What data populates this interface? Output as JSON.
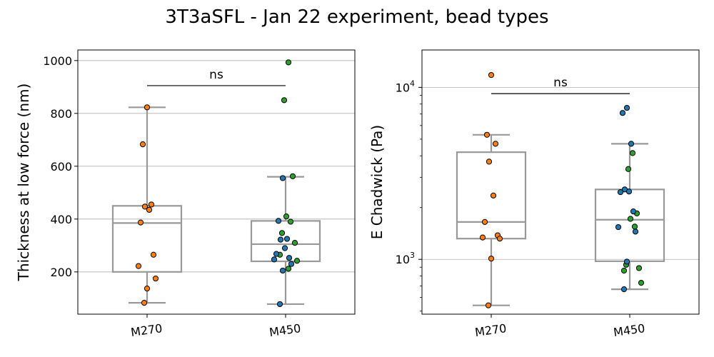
{
  "title": "3T3aSFL - Jan 22 experiment, bead types",
  "colors": {
    "box": "#999999",
    "grid": "#b0b0b0",
    "point_edge": "#000000",
    "orange": "#ff7f0e",
    "green": "#2ca02c",
    "blue": "#1f77b4"
  },
  "chart_data": [
    {
      "type": "box",
      "ylabel": "Thickness at low force (nm)",
      "yscale": "linear",
      "ylim": [
        40,
        1040
      ],
      "yticks": [
        200,
        400,
        600,
        800,
        1000
      ],
      "grid": "y",
      "categories": [
        "M270",
        "M450"
      ],
      "boxes": [
        {
          "category": "M270",
          "whisker_low": 83,
          "q1": 200,
          "median": 385,
          "q3": 450,
          "whisker_high": 823
        },
        {
          "category": "M450",
          "whisker_low": 78,
          "q1": 240,
          "median": 305,
          "q3": 393,
          "whisker_high": 560
        }
      ],
      "points": [
        {
          "category": "M270",
          "color": "orange",
          "values": [
            823,
            683,
            455,
            447,
            435,
            387,
            265,
            222,
            175,
            137,
            83
          ]
        },
        {
          "category": "M450",
          "color": "green",
          "values": [
            993,
            850,
            562,
            410,
            390,
            347,
            310,
            265,
            242,
            212
          ]
        },
        {
          "category": "M450",
          "color": "blue",
          "values": [
            555,
            393,
            325,
            322,
            290,
            268,
            253,
            247,
            230,
            205,
            78
          ]
        }
      ],
      "annotation": {
        "text": "ns",
        "y": 905
      }
    },
    {
      "type": "box",
      "ylabel": "E Chadwick (Pa)",
      "yscale": "log",
      "ylim": [
        480,
        16500
      ],
      "yticks": [
        1000,
        10000
      ],
      "ytick_labels": [
        {
          "base": "10",
          "exp": "3"
        },
        {
          "base": "10",
          "exp": "4"
        }
      ],
      "grid": "y",
      "categories": [
        "M270",
        "M450"
      ],
      "boxes": [
        {
          "category": "M270",
          "whisker_low": 540,
          "q1": 1320,
          "median": 1650,
          "q3": 4200,
          "whisker_high": 5300
        },
        {
          "category": "M450",
          "whisker_low": 670,
          "q1": 975,
          "median": 1700,
          "q3": 2550,
          "whisker_high": 4700
        }
      ],
      "points": [
        {
          "category": "M270",
          "color": "orange",
          "values": [
            11800,
            5300,
            4700,
            3700,
            2350,
            1650,
            1380,
            1340,
            1320,
            1010,
            540
          ]
        },
        {
          "category": "M450",
          "color": "green",
          "values": [
            4150,
            3350,
            1850,
            1720,
            1550,
            930,
            890,
            860,
            730
          ]
        },
        {
          "category": "M450",
          "color": "blue",
          "values": [
            7600,
            7100,
            4700,
            2550,
            2480,
            2460,
            1900,
            1540,
            1450,
            970,
            670
          ]
        }
      ],
      "annotation": {
        "text": "ns",
        "y": 9200
      }
    }
  ]
}
